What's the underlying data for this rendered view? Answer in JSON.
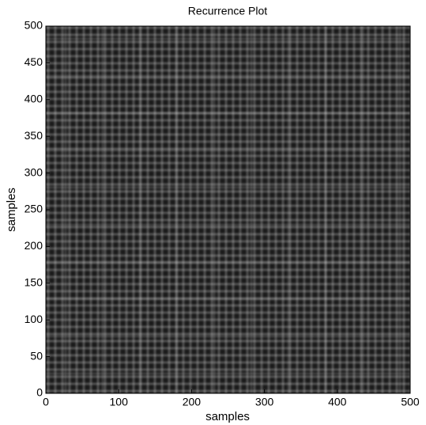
{
  "chart_data": {
    "type": "heatmap",
    "title": "Recurrence Plot",
    "x_label": "samples",
    "y_label": "samples",
    "xlim": [
      0,
      500
    ],
    "ylim": [
      0,
      500
    ],
    "xticks": [
      0,
      100,
      200,
      300,
      400,
      500
    ],
    "yticks": [
      0,
      50,
      100,
      150,
      200,
      250,
      300,
      350,
      400,
      450,
      500
    ]
  }
}
